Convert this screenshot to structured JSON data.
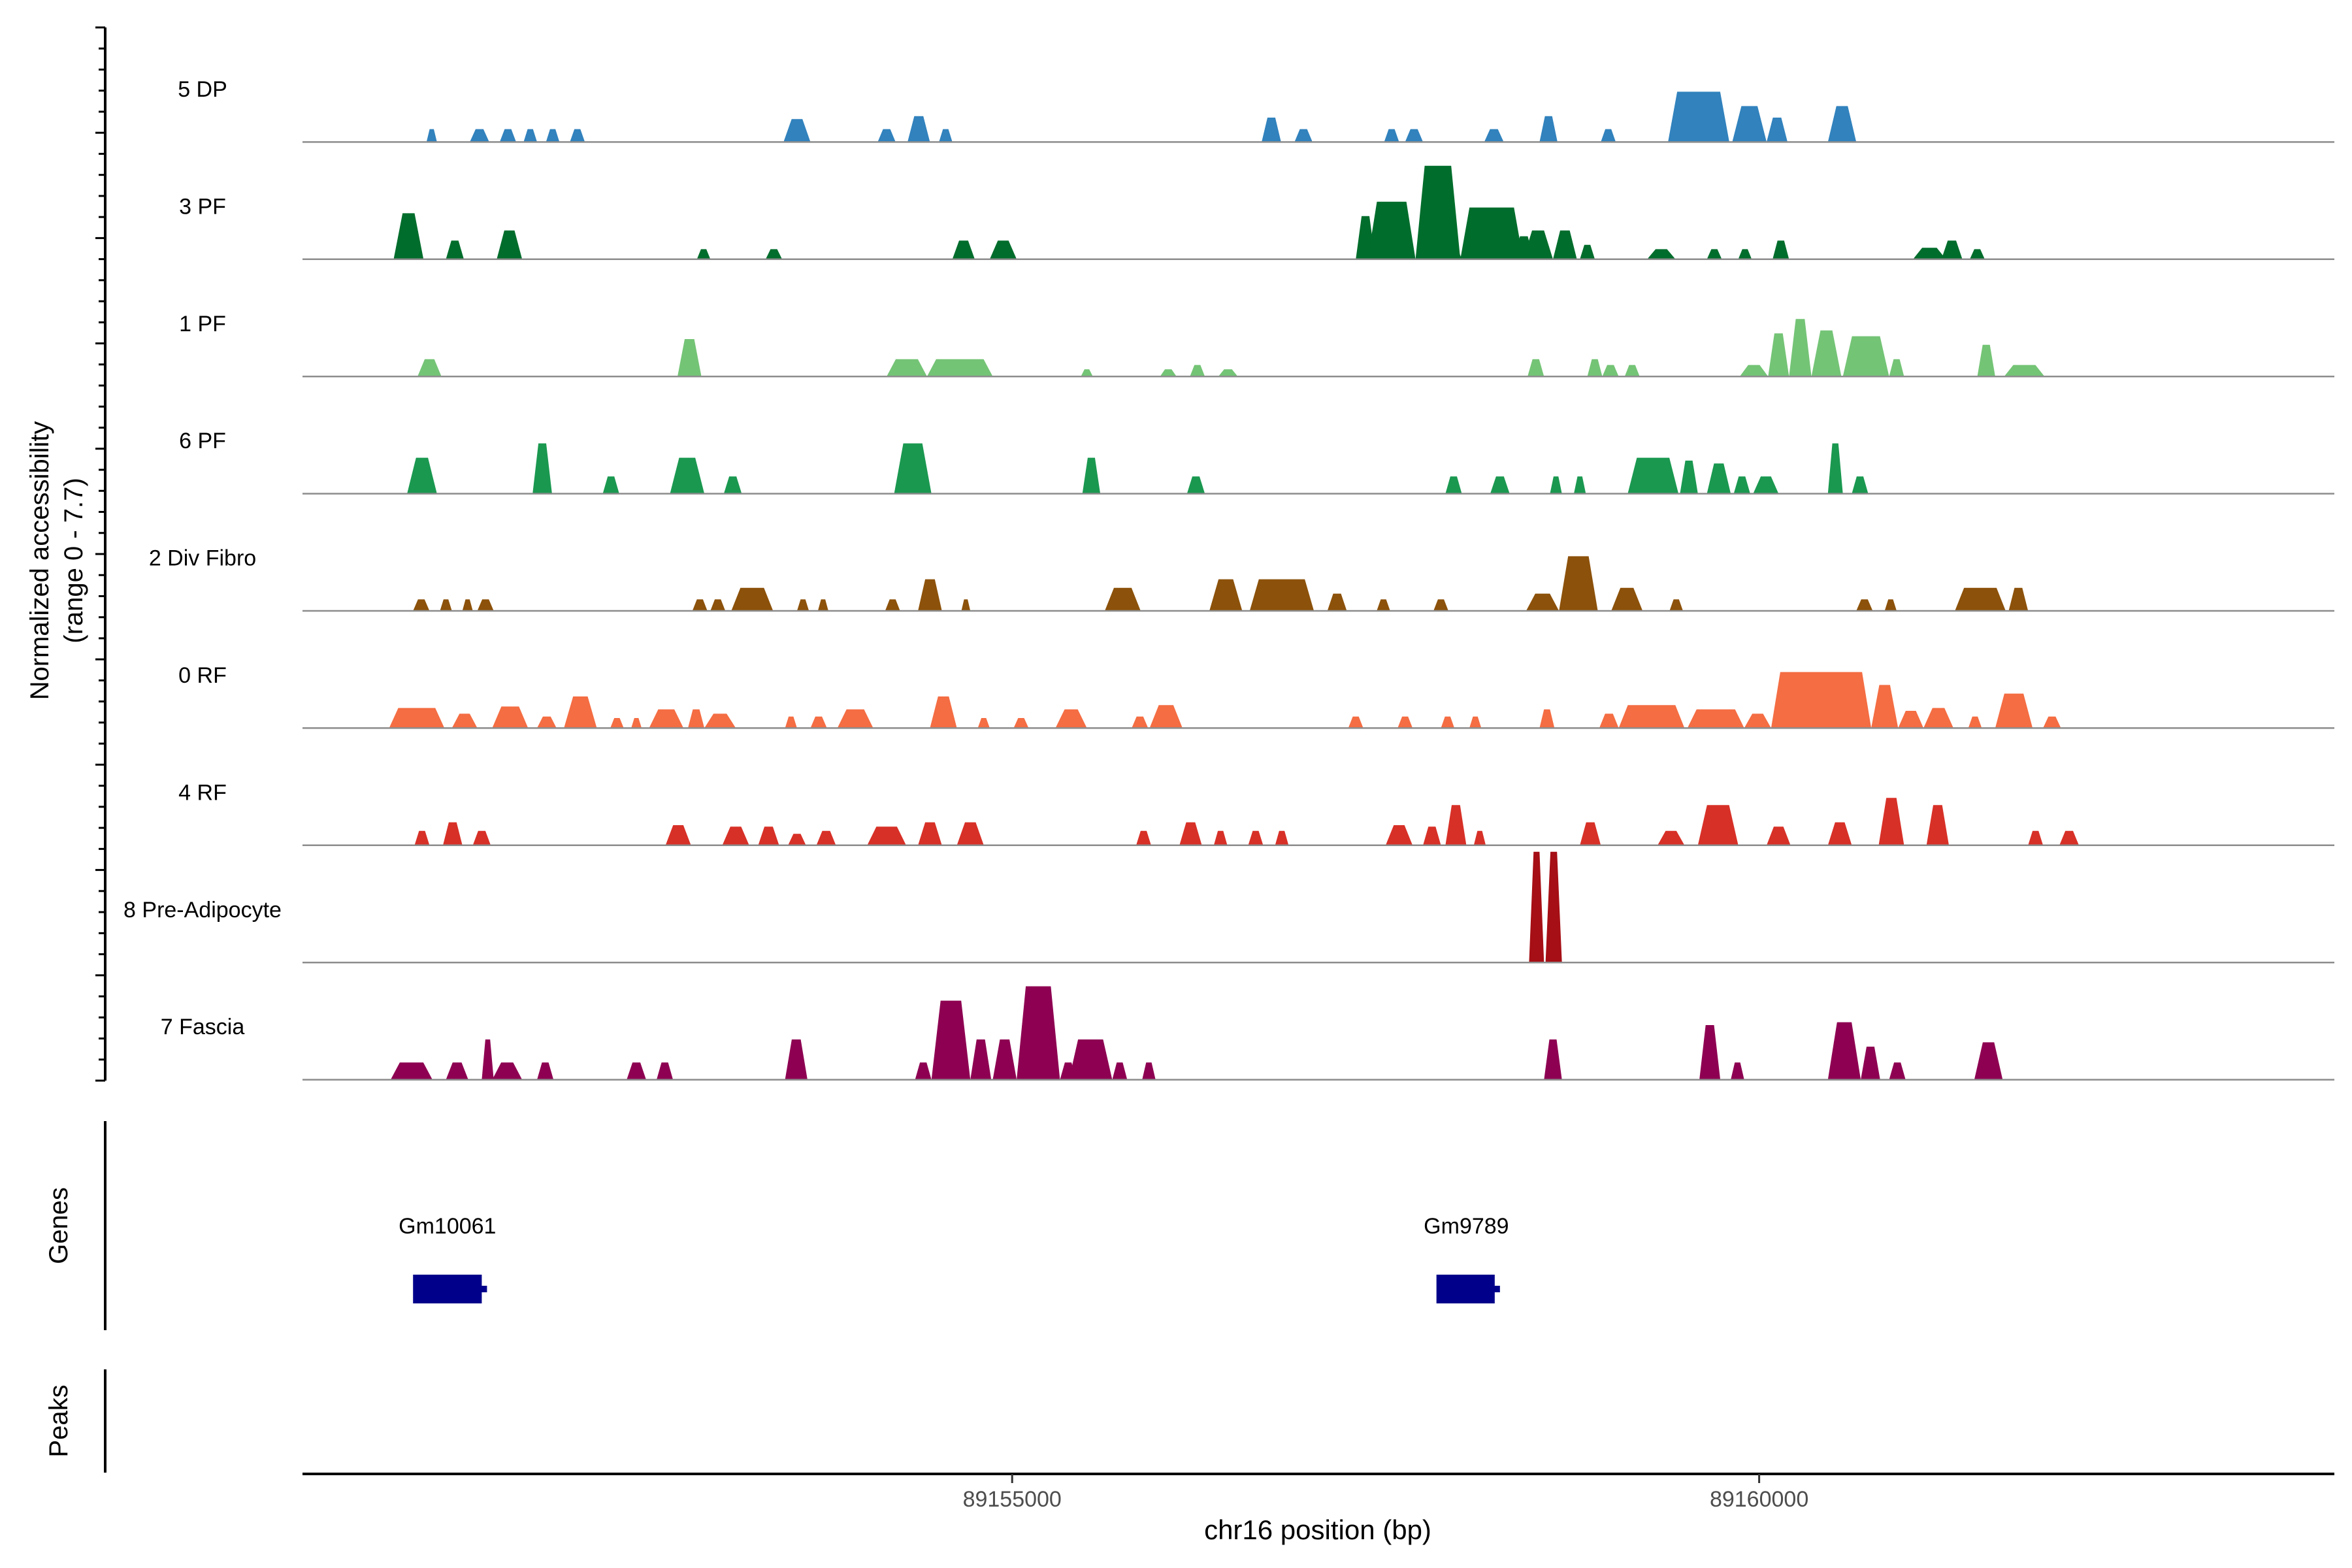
{
  "chart_data": {
    "type": "area",
    "title": "",
    "ylabel_line1": "Normalized accessibility",
    "ylabel_line2": "(range 0 - 7.7)",
    "y_range": [
      0,
      7.7
    ],
    "xlabel": "chr16 position (bp)",
    "xlim": [
      89150250,
      89163850
    ],
    "x_ticks": [
      89155000,
      89160000
    ],
    "x_tick_labels": [
      "89155000",
      "89160000"
    ],
    "genes_label": "Genes",
    "peaks_label": "Peaks",
    "genes": [
      {
        "name": "Gm10061",
        "start": 89150990,
        "end": 89151450,
        "label_x": 89151220
      },
      {
        "name": "Gm9789",
        "start": 89157840,
        "end": 89158230,
        "label_x": 89158040
      }
    ],
    "tracks": [
      {
        "name": "5 DP",
        "color": "#3182bd",
        "peaks": [
          [
            89151080,
            89151150,
            0.9
          ],
          [
            89151370,
            89151500,
            0.9
          ],
          [
            89151570,
            89151680,
            0.9
          ],
          [
            89151730,
            89151820,
            0.9
          ],
          [
            89151880,
            89151970,
            0.9
          ],
          [
            89152040,
            89152140,
            0.9
          ],
          [
            89153470,
            89153650,
            1.6
          ],
          [
            89154100,
            89154220,
            0.9
          ],
          [
            89154300,
            89154450,
            1.8
          ],
          [
            89154510,
            89154600,
            0.9
          ],
          [
            89156670,
            89156800,
            1.7
          ],
          [
            89156890,
            89157010,
            0.9
          ],
          [
            89157490,
            89157590,
            0.9
          ],
          [
            89157630,
            89157750,
            0.9
          ],
          [
            89158160,
            89158290,
            0.9
          ],
          [
            89158530,
            89158650,
            1.8
          ],
          [
            89158940,
            89159040,
            0.9
          ],
          [
            89159390,
            89159800,
            3.5
          ],
          [
            89159820,
            89160050,
            2.5
          ],
          [
            89160050,
            89160190,
            1.7
          ],
          [
            89160460,
            89160650,
            2.5
          ]
        ]
      },
      {
        "name": "3 PF",
        "color": "#006d2c",
        "peaks": [
          [
            89150860,
            89151060,
            3.2
          ],
          [
            89151210,
            89151330,
            1.3
          ],
          [
            89151550,
            89151720,
            2.0
          ],
          [
            89152890,
            89152980,
            0.7
          ],
          [
            89153350,
            89153460,
            0.7
          ],
          [
            89154600,
            89154750,
            1.3
          ],
          [
            89154850,
            89155030,
            1.3
          ],
          [
            89157300,
            89157430,
            3.0
          ],
          [
            89157470,
            89157580,
            0.7
          ],
          [
            89157780,
            89157920,
            0.7
          ],
          [
            89157920,
            89158010,
            0.7
          ],
          [
            89158050,
            89158410,
            1.3
          ],
          [
            89158360,
            89158490,
            1.6
          ],
          [
            89158680,
            89158780,
            0.7
          ],
          [
            89157380,
            89157700,
            4.0
          ],
          [
            89157700,
            89158000,
            6.5
          ],
          [
            89158000,
            89158420,
            3.6
          ],
          [
            89158420,
            89158620,
            2.0
          ],
          [
            89158620,
            89158780,
            2.0
          ],
          [
            89158800,
            89158900,
            1.0
          ],
          [
            89159250,
            89159440,
            0.7
          ],
          [
            89159650,
            89159750,
            0.7
          ],
          [
            89159860,
            89159950,
            0.7
          ],
          [
            89160090,
            89160200,
            1.3
          ],
          [
            89161030,
            89161250,
            0.8
          ],
          [
            89161220,
            89161360,
            1.3
          ],
          [
            89161410,
            89161510,
            0.7
          ]
        ]
      },
      {
        "name": "1 PF",
        "color": "#74c476",
        "peaks": [
          [
            89151020,
            89151180,
            1.2
          ],
          [
            89152760,
            89152920,
            2.6
          ],
          [
            89154430,
            89154870,
            1.2
          ],
          [
            89154160,
            89154430,
            1.2
          ],
          [
            89155460,
            89155540,
            0.5
          ],
          [
            89155990,
            89156100,
            0.5
          ],
          [
            89156190,
            89156290,
            0.8
          ],
          [
            89156380,
            89156510,
            0.5
          ],
          [
            89158450,
            89158560,
            1.2
          ],
          [
            89158850,
            89158950,
            1.2
          ],
          [
            89158950,
            89159060,
            0.8
          ],
          [
            89159100,
            89159200,
            0.8
          ],
          [
            89159870,
            89160060,
            0.8
          ],
          [
            89160060,
            89160200,
            3.0
          ],
          [
            89160200,
            89160350,
            4.0
          ],
          [
            89160350,
            89160550,
            3.2
          ],
          [
            89160560,
            89160870,
            2.8
          ],
          [
            89160870,
            89160970,
            1.2
          ],
          [
            89161460,
            89161580,
            2.2
          ],
          [
            89161640,
            89161910,
            0.8
          ]
        ]
      },
      {
        "name": "6 PF",
        "color": "#1a9850",
        "peaks": [
          [
            89150950,
            89151150,
            2.5
          ],
          [
            89151790,
            89151920,
            3.5
          ],
          [
            89152260,
            89152370,
            1.2
          ],
          [
            89152710,
            89152940,
            2.5
          ],
          [
            89153070,
            89153190,
            1.2
          ],
          [
            89154210,
            89154460,
            3.5
          ],
          [
            89155470,
            89155590,
            2.5
          ],
          [
            89156170,
            89156290,
            1.2
          ],
          [
            89157900,
            89158010,
            1.2
          ],
          [
            89158200,
            89158330,
            1.2
          ],
          [
            89158600,
            89158680,
            1.2
          ],
          [
            89158760,
            89158840,
            1.2
          ],
          [
            89159120,
            89159460,
            2.5
          ],
          [
            89159470,
            89159590,
            2.3
          ],
          [
            89159650,
            89159810,
            2.1
          ],
          [
            89159830,
            89159940,
            1.2
          ],
          [
            89159960,
            89160130,
            1.2
          ],
          [
            89160460,
            89160560,
            3.5
          ],
          [
            89160620,
            89160730,
            1.2
          ]
        ]
      },
      {
        "name": "2 Div Fibro",
        "color": "#8c510a",
        "peaks": [
          [
            89150990,
            89151100,
            0.8
          ],
          [
            89151170,
            89151250,
            0.8
          ],
          [
            89151320,
            89151390,
            0.8
          ],
          [
            89151420,
            89151530,
            0.8
          ],
          [
            89152860,
            89152960,
            0.8
          ],
          [
            89152980,
            89153080,
            0.8
          ],
          [
            89153120,
            89153400,
            1.6
          ],
          [
            89153560,
            89153640,
            0.8
          ],
          [
            89153700,
            89153770,
            0.8
          ],
          [
            89154150,
            89154250,
            0.8
          ],
          [
            89154370,
            89154530,
            2.2
          ],
          [
            89154660,
            89154720,
            0.8
          ],
          [
            89155620,
            89155860,
            1.6
          ],
          [
            89156320,
            89156540,
            2.2
          ],
          [
            89156590,
            89157020,
            2.2
          ],
          [
            89157110,
            89157240,
            1.2
          ],
          [
            89157440,
            89157530,
            0.8
          ],
          [
            89157820,
            89157920,
            0.8
          ],
          [
            89158440,
            89158660,
            1.2
          ],
          [
            89158660,
            89158920,
            3.8
          ],
          [
            89159010,
            89159220,
            1.6
          ],
          [
            89159400,
            89159490,
            0.8
          ],
          [
            89160650,
            89160760,
            0.8
          ],
          [
            89160840,
            89160920,
            0.8
          ],
          [
            89161310,
            89161650,
            1.6
          ],
          [
            89161670,
            89161800,
            1.6
          ]
        ]
      },
      {
        "name": "0 RF",
        "color": "#f46d43",
        "peaks": [
          [
            89150830,
            89151200,
            1.4
          ],
          [
            89151250,
            89151420,
            1.0
          ],
          [
            89151520,
            89151760,
            1.5
          ],
          [
            89151820,
            89151950,
            0.8
          ],
          [
            89152000,
            89152220,
            2.2
          ],
          [
            89152310,
            89152400,
            0.7
          ],
          [
            89152450,
            89152520,
            0.7
          ],
          [
            89152570,
            89152800,
            1.3
          ],
          [
            89152830,
            89152940,
            1.3
          ],
          [
            89152940,
            89153150,
            1.0
          ],
          [
            89153480,
            89153560,
            0.8
          ],
          [
            89153650,
            89153760,
            0.8
          ],
          [
            89153830,
            89154070,
            1.3
          ],
          [
            89154450,
            89154630,
            2.2
          ],
          [
            89154770,
            89154850,
            0.7
          ],
          [
            89155010,
            89155110,
            0.7
          ],
          [
            89155290,
            89155500,
            1.3
          ],
          [
            89155800,
            89155910,
            0.8
          ],
          [
            89155920,
            89156140,
            1.6
          ],
          [
            89157250,
            89157350,
            0.8
          ],
          [
            89157580,
            89157680,
            0.8
          ],
          [
            89157870,
            89157960,
            0.8
          ],
          [
            89158060,
            89158140,
            0.8
          ],
          [
            89158530,
            89158630,
            1.3
          ],
          [
            89158930,
            89159060,
            1.0
          ],
          [
            89159060,
            89159500,
            1.6
          ],
          [
            89159520,
            89159900,
            1.3
          ],
          [
            89159900,
            89160080,
            1.0
          ],
          [
            89160080,
            89160750,
            3.9
          ],
          [
            89160750,
            89160930,
            3.0
          ],
          [
            89160930,
            89161100,
            1.2
          ],
          [
            89161100,
            89161300,
            1.4
          ],
          [
            89161400,
            89161490,
            0.8
          ],
          [
            89161580,
            89161830,
            2.4
          ],
          [
            89161900,
            89162020,
            0.8
          ]
        ]
      },
      {
        "name": "4 RF",
        "color": "#d73027",
        "peaks": [
          [
            89151000,
            89151100,
            1.0
          ],
          [
            89151190,
            89151320,
            1.6
          ],
          [
            89151390,
            89151510,
            1.0
          ],
          [
            89152680,
            89152850,
            1.4
          ],
          [
            89153060,
            89153240,
            1.3
          ],
          [
            89153300,
            89153440,
            1.3
          ],
          [
            89153500,
            89153620,
            0.8
          ],
          [
            89153690,
            89153820,
            1.0
          ],
          [
            89154030,
            89154290,
            1.3
          ],
          [
            89154370,
            89154530,
            1.6
          ],
          [
            89154630,
            89154810,
            1.6
          ],
          [
            89155830,
            89155930,
            1.0
          ],
          [
            89156120,
            89156270,
            1.6
          ],
          [
            89156350,
            89156440,
            1.0
          ],
          [
            89156580,
            89156680,
            1.0
          ],
          [
            89156760,
            89156850,
            1.0
          ],
          [
            89157500,
            89157680,
            1.4
          ],
          [
            89157750,
            89157870,
            1.3
          ],
          [
            89157900,
            89158040,
            2.8
          ],
          [
            89158090,
            89158170,
            1.0
          ],
          [
            89158800,
            89158940,
            1.6
          ],
          [
            89159320,
            89159500,
            1.0
          ],
          [
            89159590,
            89159860,
            2.8
          ],
          [
            89160050,
            89160210,
            1.3
          ],
          [
            89160460,
            89160620,
            1.6
          ],
          [
            89160800,
            89160970,
            3.3
          ],
          [
            89161120,
            89161270,
            2.8
          ],
          [
            89161800,
            89161900,
            1.0
          ],
          [
            89162010,
            89162140,
            1.0
          ]
        ]
      },
      {
        "name": "8 Pre-Adipocyte",
        "color": "#a50f15",
        "peaks": [
          [
            89158460,
            89158560,
            7.7
          ],
          [
            89158570,
            89158680,
            7.7
          ]
        ]
      },
      {
        "name": "7 Fascia",
        "color": "#8e0152",
        "peaks": [
          [
            89150840,
            89151120,
            1.2
          ],
          [
            89151210,
            89151360,
            1.2
          ],
          [
            89151450,
            89151530,
            2.8
          ],
          [
            89151520,
            89151720,
            1.2
          ],
          [
            89151820,
            89151930,
            1.2
          ],
          [
            89152420,
            89152550,
            1.2
          ],
          [
            89152620,
            89152730,
            1.2
          ],
          [
            89153480,
            89153630,
            2.8
          ],
          [
            89154350,
            89154460,
            1.2
          ],
          [
            89154460,
            89154720,
            5.5
          ],
          [
            89154720,
            89154860,
            2.8
          ],
          [
            89154870,
            89155030,
            2.8
          ],
          [
            89155030,
            89155320,
            6.5
          ],
          [
            89155320,
            89155430,
            1.2
          ],
          [
            89155380,
            89155670,
            2.8
          ],
          [
            89155670,
            89155770,
            1.2
          ],
          [
            89155870,
            89155960,
            1.2
          ],
          [
            89158560,
            89158680,
            2.8
          ],
          [
            89159600,
            89159740,
            3.8
          ],
          [
            89159810,
            89159900,
            1.2
          ],
          [
            89160460,
            89160680,
            4.0
          ],
          [
            89160680,
            89160810,
            2.3
          ],
          [
            89160870,
            89160980,
            1.2
          ],
          [
            89161440,
            89161630,
            2.6
          ]
        ]
      }
    ]
  }
}
